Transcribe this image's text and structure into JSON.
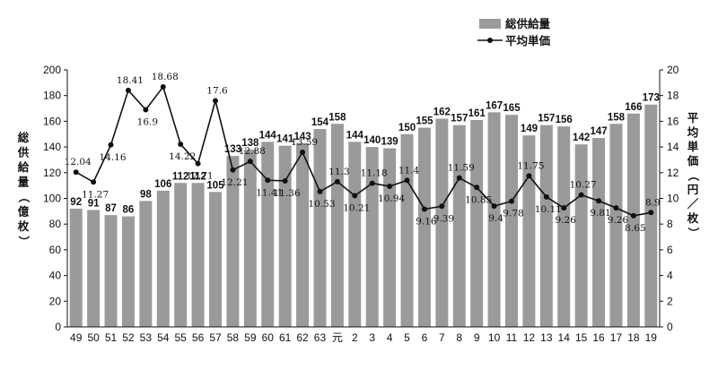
{
  "chart_data": {
    "type": "bar+line",
    "categories": [
      "49",
      "50",
      "51",
      "52",
      "53",
      "54",
      "55",
      "56",
      "57",
      "58",
      "59",
      "60",
      "61",
      "62",
      "63",
      "元",
      "2",
      "3",
      "4",
      "5",
      "6",
      "7",
      "8",
      "9",
      "10",
      "11",
      "12",
      "13",
      "14",
      "15",
      "16",
      "17",
      "18",
      "19"
    ],
    "series": [
      {
        "name": "総供給量",
        "type": "bar",
        "axis": "left",
        "values": [
          92,
          91,
          87,
          86,
          98,
          106,
          112,
          112,
          105,
          133,
          138,
          144,
          141,
          143,
          154,
          158,
          144,
          140,
          139,
          150,
          155,
          162,
          157,
          161,
          167,
          165,
          149,
          157,
          156,
          142,
          147,
          158,
          166,
          173
        ],
        "labels": [
          "92",
          "91",
          "87",
          "86",
          "98",
          "106",
          "112",
          "112",
          "105",
          "133",
          "138",
          "144",
          "141",
          "143",
          "154",
          "158",
          "144",
          "140",
          "139",
          "150",
          "155",
          "162",
          "157",
          "161",
          "167",
          "165",
          "149",
          "157",
          "156",
          "142",
          "147",
          "158",
          "166",
          "173"
        ]
      },
      {
        "name": "平均単価",
        "type": "line",
        "axis": "right",
        "values": [
          12.04,
          11.27,
          14.16,
          18.41,
          16.9,
          18.68,
          14.22,
          12.71,
          17.6,
          12.21,
          12.88,
          11.41,
          11.36,
          13.59,
          10.53,
          11.3,
          10.21,
          11.18,
          10.94,
          11.4,
          9.16,
          9.39,
          11.59,
          10.85,
          9.4,
          9.78,
          11.75,
          10.11,
          9.26,
          10.27,
          9.81,
          9.26,
          8.65,
          8.9
        ],
        "labels": [
          "12.04",
          "11.27",
          "14.16",
          "18.41",
          "16.9",
          "18.68",
          "14.22",
          "12.71",
          "17.6",
          "12.21",
          "12.88",
          "11.41",
          "11.36",
          "13.59",
          "10.53",
          "11.3",
          "10.21",
          "11.18",
          "10.94",
          "11.4",
          "9.16",
          "9.39",
          "11.59",
          "10.85",
          "9.4",
          "9.78",
          "11.75",
          "10.11",
          "9.26",
          "10.27",
          "9.81",
          "9.26",
          "8.65",
          "8.9"
        ]
      }
    ],
    "ylabel_left": "総供給量（億枚）",
    "ylabel_right": "平均単価（円／枚）",
    "ylim_left": [
      0,
      200
    ],
    "yticks_left": [
      "0",
      "20",
      "40",
      "60",
      "80",
      "100",
      "120",
      "140",
      "160",
      "180",
      "200"
    ],
    "ylim_right": [
      0,
      20
    ],
    "yticks_right": [
      "0",
      "2",
      "4",
      "6",
      "8",
      "10",
      "12",
      "14",
      "16",
      "18",
      "20"
    ],
    "legend_position": "top-right",
    "grid": false,
    "colors": {
      "bar": "#9a9a9a",
      "line": "#111111"
    }
  }
}
